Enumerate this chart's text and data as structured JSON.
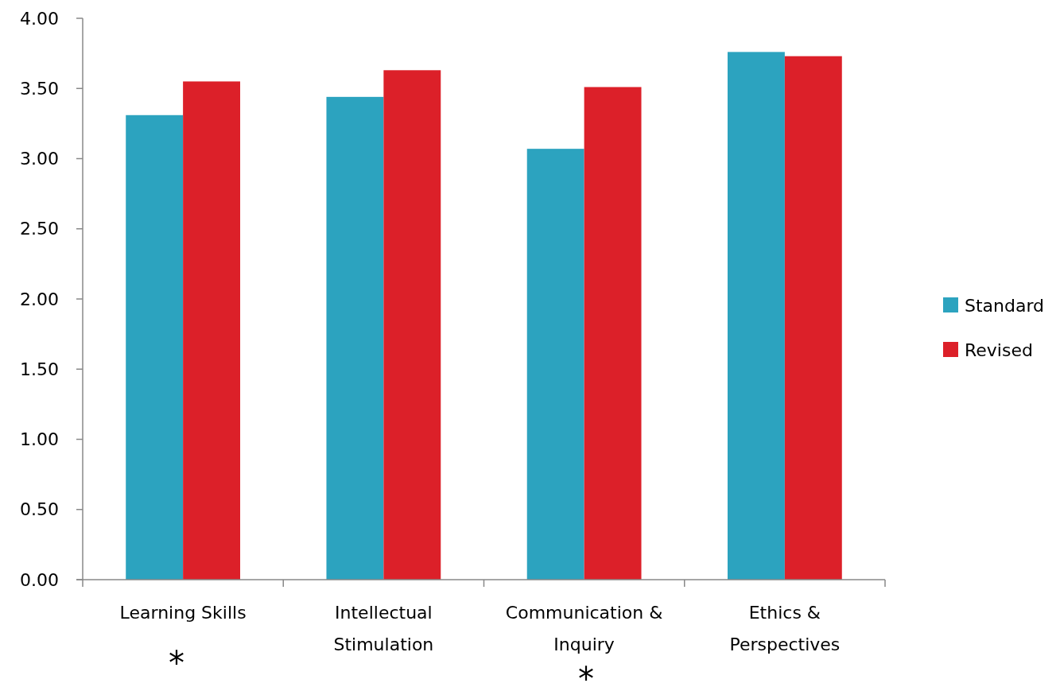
{
  "chart_data": {
    "type": "bar",
    "categories": [
      "Learning Skills",
      "Intellectual Stimulation",
      "Communication & Inquiry",
      "Ethics & Perspectives"
    ],
    "series": [
      {
        "name": "Standard",
        "color": "#2ca3bf",
        "values": [
          3.31,
          3.44,
          3.07,
          3.76
        ]
      },
      {
        "name": "Revised",
        "color": "#dc2029",
        "values": [
          3.55,
          3.63,
          3.51,
          3.73
        ]
      }
    ],
    "ylim": [
      0,
      4
    ],
    "yticks": [
      {
        "value": 0,
        "label": "0.00"
      },
      {
        "value": 0.5,
        "label": "0.50"
      },
      {
        "value": 1,
        "label": "1.00"
      },
      {
        "value": 1.5,
        "label": "1.50"
      },
      {
        "value": 2,
        "label": "2.00"
      },
      {
        "value": 2.5,
        "label": "2.50"
      },
      {
        "value": 3,
        "label": "3.00"
      },
      {
        "value": 3.5,
        "label": "3.50"
      },
      {
        "value": 4,
        "label": "4.00"
      }
    ],
    "grid": false,
    "legend": "right",
    "annotations": [
      "*",
      "*"
    ]
  }
}
